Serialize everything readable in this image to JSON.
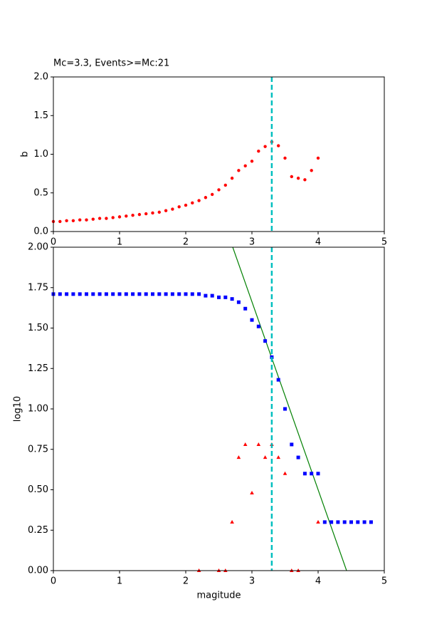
{
  "chart_data": [
    {
      "type": "scatter",
      "title": "Mc=3.3, Events>=Mc:21",
      "ylabel": "b",
      "xlim": [
        0,
        5
      ],
      "ylim": [
        0,
        2
      ],
      "xticks": [
        0,
        1,
        2,
        3,
        4,
        5
      ],
      "yticks": [
        {
          "value": 0,
          "label": "0.0"
        },
        0.5,
        {
          "value": 1,
          "label": "1.0"
        },
        1.5,
        {
          "value": 2,
          "label": "2.0"
        }
      ],
      "vline": 3.3,
      "vline_color": "#00bfbf",
      "series": [
        {
          "color": "#ff0000",
          "marker": "o",
          "x": [
            0,
            0.1,
            0.2,
            0.3,
            0.4,
            0.5,
            0.6,
            0.7,
            0.8,
            0.9,
            1.0,
            1.1,
            1.2,
            1.3,
            1.4,
            1.5,
            1.6,
            1.7,
            1.8,
            1.9,
            2.0,
            2.1,
            2.2,
            2.3,
            2.4,
            2.5,
            2.6,
            2.7,
            2.8,
            2.9,
            3.0,
            3.1,
            3.2,
            3.3,
            3.4,
            3.5,
            3.6,
            3.7,
            3.8,
            3.9,
            4.0
          ],
          "values": [
            0.13,
            0.13,
            0.14,
            0.14,
            0.15,
            0.15,
            0.16,
            0.17,
            0.17,
            0.18,
            0.19,
            0.2,
            0.21,
            0.22,
            0.23,
            0.24,
            0.25,
            0.27,
            0.29,
            0.32,
            0.34,
            0.37,
            0.4,
            0.44,
            0.48,
            0.54,
            0.6,
            0.69,
            0.79,
            0.85,
            0.91,
            1.04,
            1.1,
            1.16,
            1.11,
            0.95,
            0.71,
            0.69,
            0.67,
            0.79,
            0.95
          ]
        }
      ]
    },
    {
      "type": "scatter",
      "xlabel": "magitude",
      "ylabel": "log10",
      "xlim": [
        0,
        5
      ],
      "ylim": [
        0,
        2
      ],
      "xticks": [
        0,
        1,
        2,
        3,
        4,
        5
      ],
      "yticks": [
        {
          "value": 0,
          "label": "0.00"
        },
        {
          "value": 0.25,
          "label": "0.25"
        },
        {
          "value": 0.5,
          "label": "0.50"
        },
        {
          "value": 0.75,
          "label": "0.75"
        },
        {
          "value": 1,
          "label": "1.00"
        },
        {
          "value": 1.25,
          "label": "1.25"
        },
        {
          "value": 1.5,
          "label": "1.50"
        },
        {
          "value": 1.75,
          "label": "1.75"
        },
        {
          "value": 2,
          "label": "2.00"
        }
      ],
      "vline": 3.3,
      "vline_color": "#00bfbf",
      "series": [
        {
          "color": "#0000ff",
          "marker": "s",
          "x": [
            0,
            0.1,
            0.2,
            0.3,
            0.4,
            0.5,
            0.6,
            0.7,
            0.8,
            0.9,
            1.0,
            1.1,
            1.2,
            1.3,
            1.4,
            1.5,
            1.6,
            1.7,
            1.8,
            1.9,
            2.0,
            2.1,
            2.2,
            2.3,
            2.4,
            2.5,
            2.6,
            2.7,
            2.8,
            2.9,
            3.0,
            3.1,
            3.2,
            3.3,
            3.4,
            3.5,
            3.6,
            3.7,
            3.8,
            3.9,
            4.0,
            4.1,
            4.2,
            4.3,
            4.4,
            4.5,
            4.6,
            4.7,
            4.8
          ],
          "values": [
            1.71,
            1.71,
            1.71,
            1.71,
            1.71,
            1.71,
            1.71,
            1.71,
            1.71,
            1.71,
            1.71,
            1.71,
            1.71,
            1.71,
            1.71,
            1.71,
            1.71,
            1.71,
            1.71,
            1.71,
            1.71,
            1.71,
            1.71,
            1.7,
            1.7,
            1.69,
            1.69,
            1.68,
            1.66,
            1.62,
            1.55,
            1.51,
            1.42,
            1.32,
            1.18,
            1.0,
            0.78,
            0.7,
            0.6,
            0.6,
            0.6,
            0.3,
            0.3,
            0.3,
            0.3,
            0.3,
            0.3,
            0.3,
            0.3
          ]
        },
        {
          "color": "#ff0000",
          "marker": "^",
          "x": [
            2.2,
            2.5,
            2.6,
            2.7,
            2.8,
            2.9,
            3.0,
            3.1,
            3.2,
            3.3,
            3.4,
            3.5,
            3.6,
            3.7,
            4.0
          ],
          "values": [
            0,
            0,
            0,
            0.3,
            0.7,
            0.78,
            0.48,
            0.78,
            0.7,
            0.78,
            0.7,
            0.6,
            0,
            0,
            0.3
          ]
        },
        {
          "color": "#008000",
          "marker": "line",
          "x": [
            2.71,
            4.43
          ],
          "values": [
            2,
            0
          ]
        }
      ]
    }
  ]
}
